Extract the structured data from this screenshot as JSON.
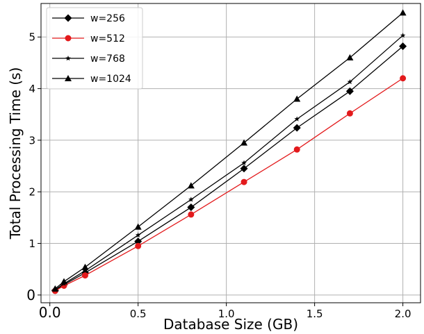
{
  "chart_data": {
    "type": "line",
    "title": "",
    "xlabel": "Database Size (GB)",
    "ylabel": "Total Processing Time (s)",
    "xlim": [
      -0.05,
      2.1
    ],
    "ylim": [
      -0.15,
      5.65
    ],
    "grid": true,
    "legend_position": "top-left",
    "x": [
      0.03,
      0.08,
      0.2,
      0.5,
      0.8,
      1.1,
      1.4,
      1.7,
      2.0
    ],
    "xticks": [
      0.0,
      0.5,
      1.0,
      1.5,
      2.0
    ],
    "xtick_labels": [
      "0.0",
      "0.5",
      "1.0",
      "1.5",
      "2.0"
    ],
    "yticks": [
      0,
      1,
      2,
      3,
      4,
      5
    ],
    "ytick_labels": [
      "0",
      "1",
      "2",
      "3",
      "4",
      "5"
    ],
    "series": [
      {
        "name": "w=256",
        "color": "#000000",
        "marker": "diamond",
        "values": [
          0.09,
          0.2,
          0.43,
          1.04,
          1.7,
          2.45,
          3.24,
          3.95,
          4.82
        ]
      },
      {
        "name": "w=512",
        "color": "#e31a1c",
        "marker": "circle",
        "values": [
          0.08,
          0.18,
          0.38,
          0.95,
          1.56,
          2.19,
          2.82,
          3.52,
          4.2
        ]
      },
      {
        "name": "w=768",
        "color": "#000000",
        "marker": "star",
        "values": [
          0.1,
          0.22,
          0.47,
          1.16,
          1.85,
          2.56,
          3.41,
          4.13,
          5.03
        ]
      },
      {
        "name": "w=1024",
        "color": "#000000",
        "marker": "triangle",
        "values": [
          0.12,
          0.26,
          0.54,
          1.32,
          2.12,
          2.95,
          3.8,
          4.6,
          5.47
        ]
      }
    ]
  }
}
